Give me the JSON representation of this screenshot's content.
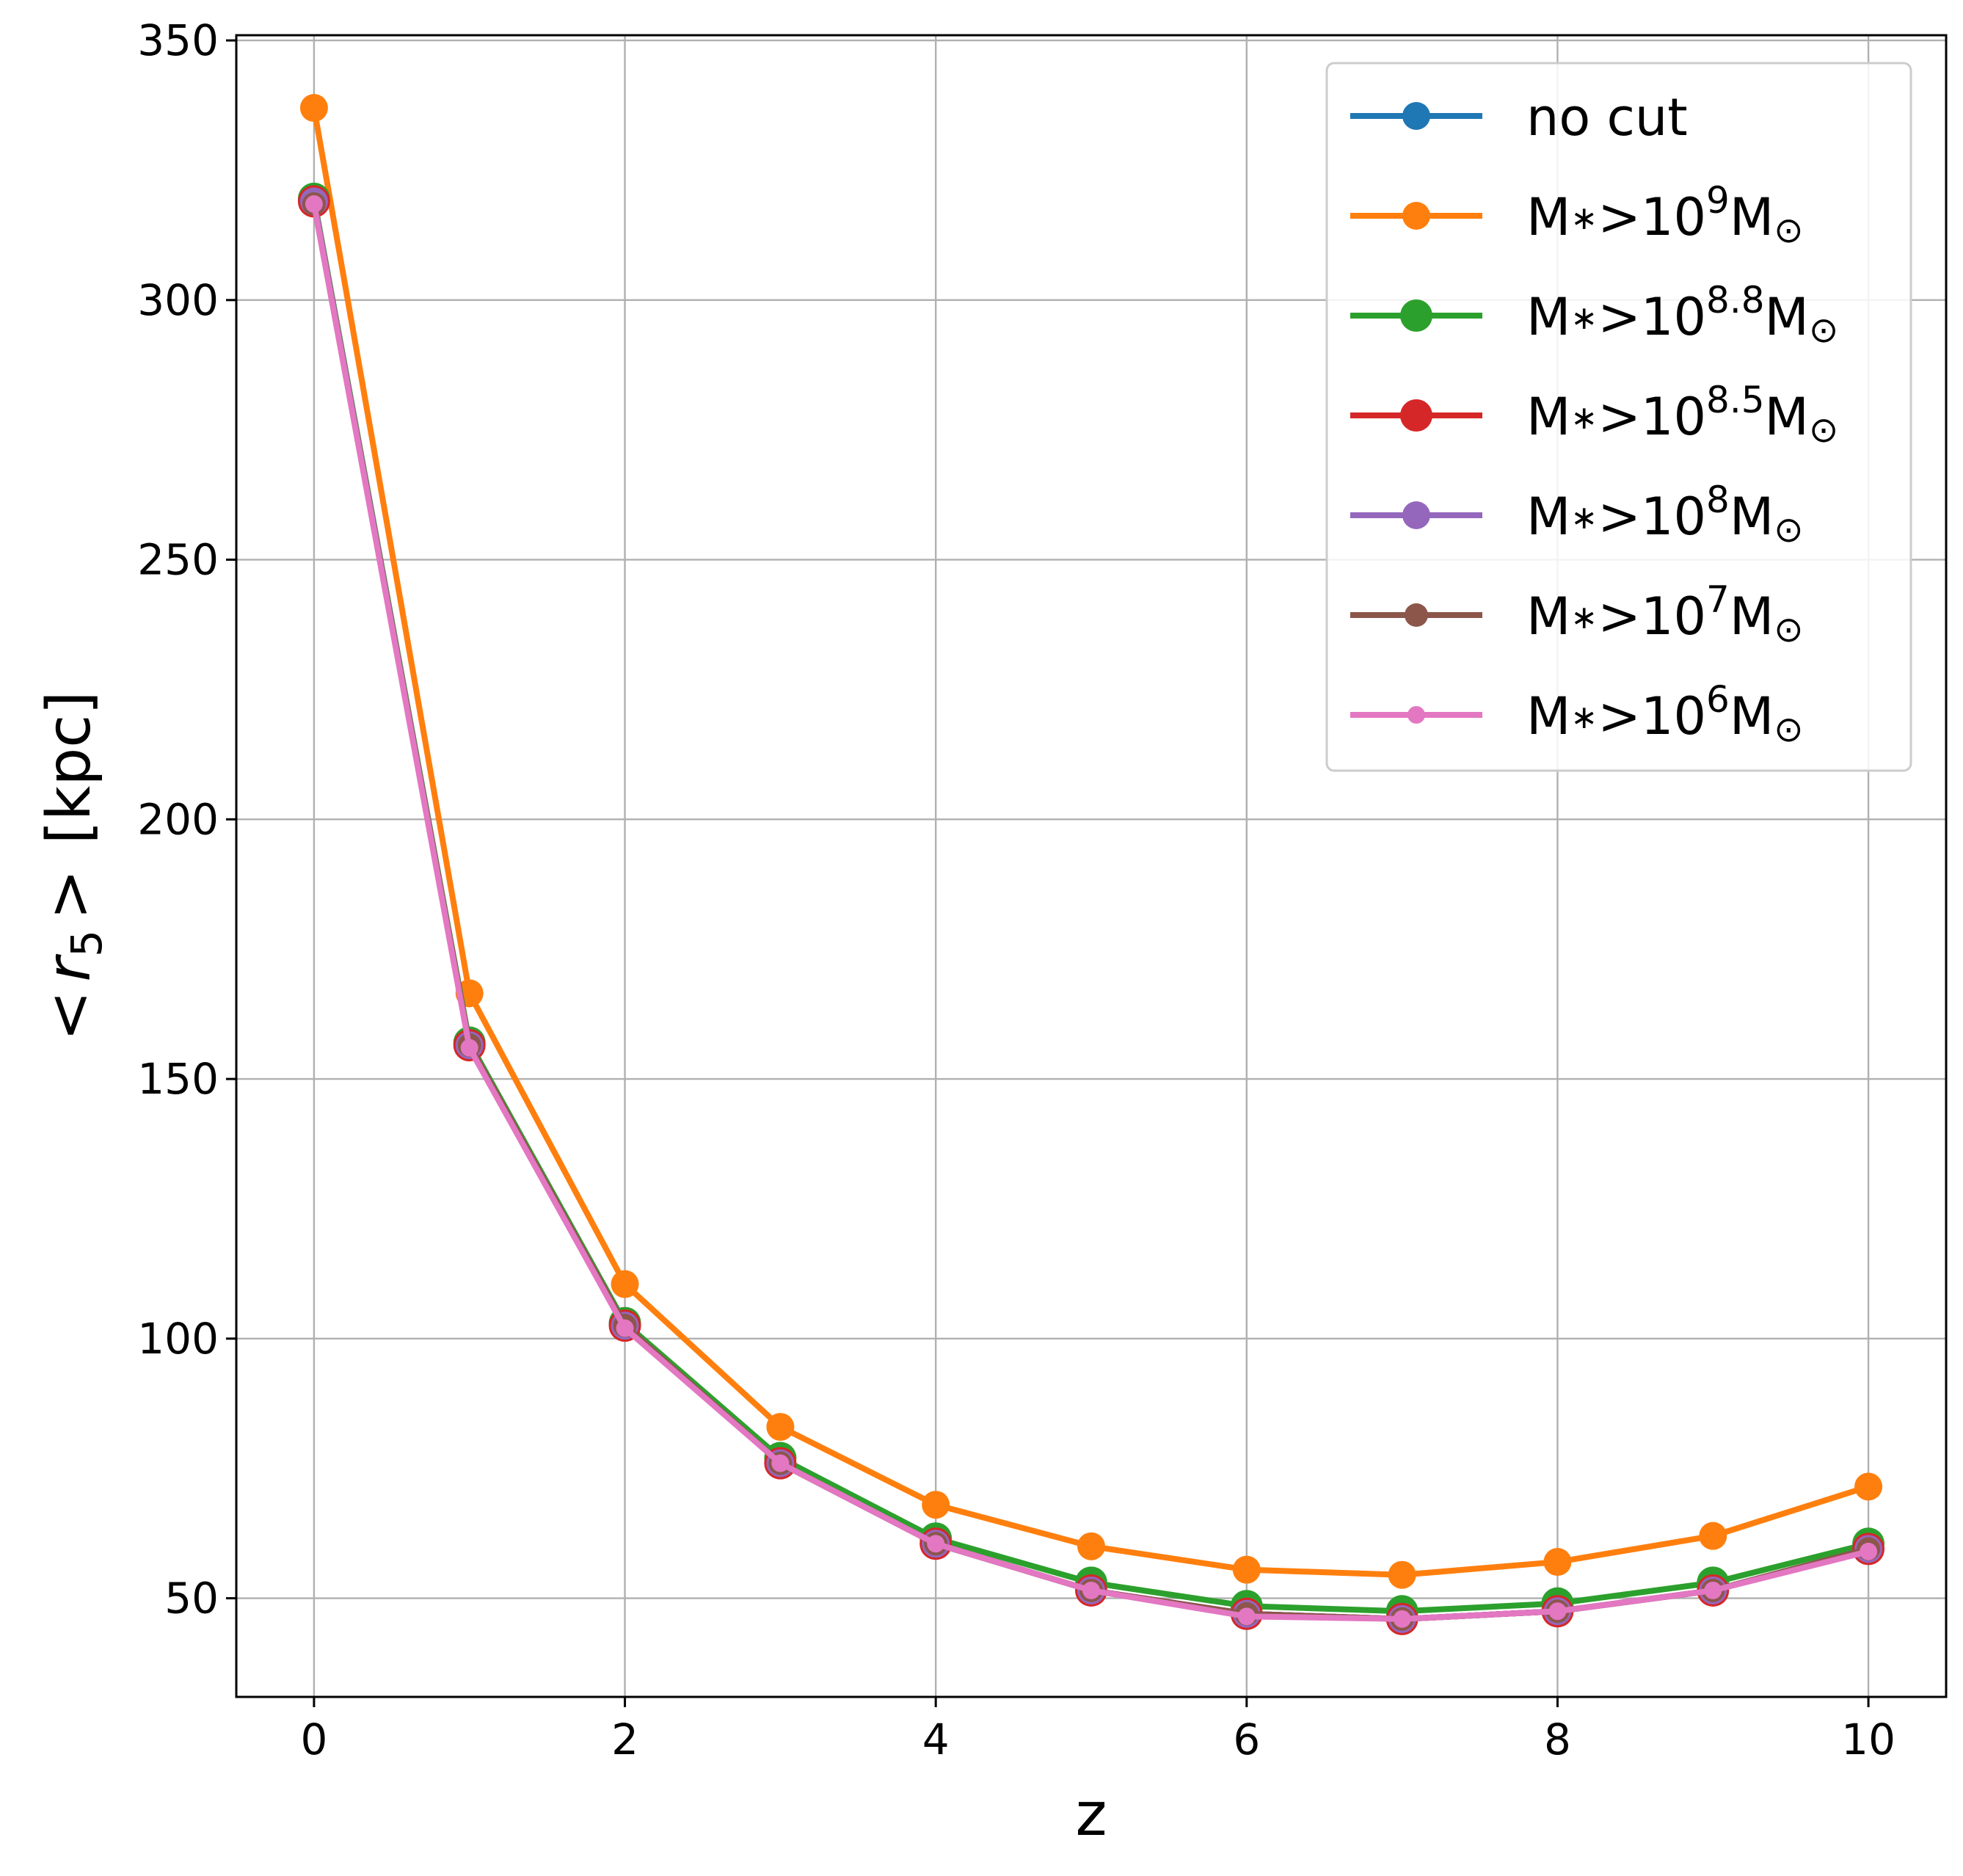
{
  "chart_data": {
    "type": "line",
    "title": "",
    "xlabel": "z",
    "ylabel_parts": {
      "open": "<",
      "var": "r",
      "sub": "5",
      "close": ">",
      "unit": "[kpc]"
    },
    "xlim": [
      -0.5,
      10.5
    ],
    "ylim": [
      31,
      351
    ],
    "xticks": [
      0,
      2,
      4,
      6,
      8,
      10
    ],
    "yticks": [
      50,
      100,
      150,
      200,
      250,
      300,
      350
    ],
    "grid": true,
    "legend_position": "top-right",
    "x": [
      0,
      1,
      2,
      3,
      4,
      5,
      6,
      7,
      8,
      9,
      10
    ],
    "series": [
      {
        "label_parts": {
          "text": "no cut"
        },
        "color": "#1f77b4",
        "marker": "large",
        "values": [
          319,
          156.5,
          102.5,
          76,
          60.5,
          51.5,
          47,
          46,
          47.5,
          51.5,
          59.5
        ]
      },
      {
        "label_parts": {
          "base": "M",
          "star": "∗",
          "rel": ">10",
          "exp": "9",
          "tail": "M",
          "sun": "⊙"
        },
        "color": "#ff7f0e",
        "marker": "large",
        "values": [
          337,
          166.5,
          110.5,
          83,
          68,
          60,
          55.5,
          54.5,
          57,
          62,
          71.5
        ]
      },
      {
        "label_parts": {
          "base": "M",
          "star": "∗",
          "rel": ">10",
          "exp": "8.8",
          "tail": "M",
          "sun": "⊙"
        },
        "color": "#2ca02c",
        "marker": "xlarge",
        "values": [
          319.5,
          157,
          103,
          77,
          61.5,
          53,
          48.5,
          47.5,
          49,
          53,
          60.5
        ]
      },
      {
        "label_parts": {
          "base": "M",
          "star": "∗",
          "rel": ">10",
          "exp": "8.5",
          "tail": "M",
          "sun": "⊙"
        },
        "color": "#d62728",
        "marker": "xlarge",
        "values": [
          319,
          156.5,
          102.5,
          76,
          60.5,
          51.5,
          47,
          46,
          47.5,
          51.5,
          59.5
        ]
      },
      {
        "label_parts": {
          "base": "M",
          "star": "∗",
          "rel": ">10",
          "exp": "8",
          "tail": "M",
          "sun": "⊙"
        },
        "color": "#9467bd",
        "marker": "large",
        "values": [
          319,
          156.5,
          102.5,
          76,
          60.5,
          51.5,
          47,
          46,
          47.5,
          51.5,
          59.5
        ]
      },
      {
        "label_parts": {
          "base": "M",
          "star": "∗",
          "rel": ">10",
          "exp": "7",
          "tail": "M",
          "sun": "⊙"
        },
        "color": "#8c564b",
        "marker": "medium",
        "values": [
          318.5,
          156.5,
          102.5,
          76,
          60.5,
          51.5,
          47,
          46,
          47.5,
          51.5,
          59.5
        ]
      },
      {
        "label_parts": {
          "base": "M",
          "star": "∗",
          "rel": ">10",
          "exp": "6",
          "tail": "M",
          "sun": "⊙"
        },
        "color": "#e377c2",
        "marker": "small",
        "values": [
          318.5,
          156,
          102,
          76,
          60.5,
          51.5,
          46.5,
          46,
          47.5,
          51.5,
          59
        ]
      }
    ]
  }
}
